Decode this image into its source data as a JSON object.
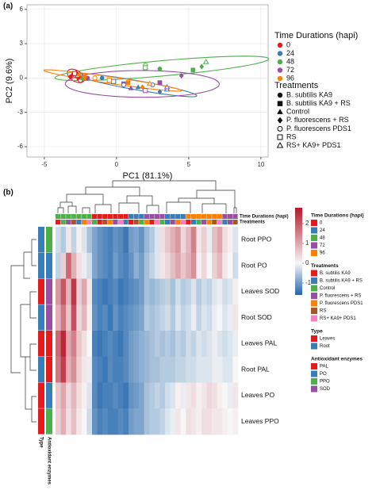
{
  "chart_data": [
    {
      "type": "scatter",
      "panel": "(a)",
      "xlabel": "PC1 (81.1%)",
      "ylabel": "PC2 (9.6%)",
      "xlim": [
        -6.2,
        10.5
      ],
      "ylim": [
        -6.9,
        6.4
      ],
      "xticks": [
        -5,
        0,
        5,
        10
      ],
      "yticks": [
        -6,
        -3,
        0,
        3,
        6
      ],
      "grid": true,
      "legend_title": "Time Durations (hapi)",
      "series": [
        {
          "name": "0",
          "color": "#e41a1c",
          "x": [
            -3.0,
            -2.6,
            -2.8,
            -3.2,
            -2.5,
            -2.9,
            -2.7
          ],
          "values": [
            0.3,
            0.0,
            0.5,
            0.1,
            -0.2,
            0.4,
            0.2
          ]
        },
        {
          "name": "24",
          "color": "#377eb8",
          "x": [
            -1.0,
            0.5,
            1.5,
            3.0,
            2.5,
            -0.2,
            3.5
          ],
          "values": [
            0.0,
            -0.5,
            -0.8,
            -1.2,
            -0.6,
            -0.3,
            -1.0
          ]
        },
        {
          "name": "48",
          "color": "#4daf4a",
          "x": [
            3.0,
            5.3,
            -2.4,
            5.9,
            2.0,
            2.0,
            6.2
          ],
          "values": [
            0.8,
            0.7,
            0.0,
            1.0,
            1.1,
            0.9,
            1.4
          ]
        },
        {
          "name": "72",
          "color": "#984ea3",
          "x": [
            -2.0,
            3.0,
            1.0,
            4.5,
            0.5,
            2.0,
            3.5
          ],
          "values": [
            0.0,
            -0.4,
            -0.9,
            0.2,
            -0.6,
            -1.1,
            -0.8
          ]
        },
        {
          "name": "96",
          "color": "#ff7f00",
          "x": [
            -2.2,
            0.8,
            -2.6,
            1.8,
            -1.5,
            -0.5,
            2.3
          ],
          "values": [
            0.1,
            -0.4,
            0.3,
            -0.8,
            0.0,
            -0.2,
            -0.5
          ]
        }
      ],
      "treatments": {
        "title": "Treatments",
        "names": [
          "B. subtilis KA9",
          "B. subtilis KA9 + RS",
          "Control",
          "P. fluorescens + RS",
          "P. fluorescens PDS1",
          "RS",
          "RS+ KA9+ PDS1"
        ],
        "markers": [
          "circle",
          "square",
          "triangle",
          "diamond",
          "circle-open",
          "square-open",
          "triangle-open"
        ]
      }
    },
    {
      "type": "heatmap",
      "panel": "(b)",
      "rows": [
        "Root PPO",
        "Root PO",
        "Leaves SOD",
        "Root SOD",
        "Leaves PAL",
        "Root PAL",
        "Leaves PO",
        "Leaves PPO"
      ],
      "matrix": [
        [
          -0.3,
          -0.5,
          0.2,
          -0.4,
          0.1,
          -0.2,
          -0.6,
          -0.9,
          -1.1,
          -1.2,
          -1.3,
          -1.1,
          -1.2,
          -1.4,
          -1.0,
          -0.9,
          -1.1,
          -0.7,
          -0.5,
          -0.2,
          0.3,
          0.6,
          0.9,
          1.2,
          0.4,
          0.8,
          1.5,
          0.2,
          0.5,
          -0.1,
          0.7,
          1.0,
          0.3,
          0.1,
          -0.2
        ],
        [
          -0.4,
          0.5,
          1.8,
          0.9,
          0.3,
          -0.1,
          -0.3,
          -0.9,
          -1.1,
          -1.2,
          -1.3,
          -1.0,
          -1.2,
          -1.3,
          -1.1,
          -0.8,
          -1.0,
          -0.6,
          -0.4,
          -0.2,
          0.2,
          0.4,
          0.7,
          1.0,
          0.6,
          0.9,
          1.3,
          0.1,
          0.4,
          0.0,
          0.5,
          0.8,
          0.2,
          0.0,
          -0.3
        ],
        [
          1.2,
          2.0,
          0.8,
          2.4,
          0.5,
          1.0,
          0.2,
          -1.2,
          -1.3,
          -1.4,
          -1.3,
          -1.2,
          -1.4,
          -1.3,
          -1.2,
          -1.1,
          -1.0,
          -0.6,
          -0.7,
          -0.6,
          -0.5,
          -0.4,
          -0.6,
          -0.3,
          -0.5,
          -0.4,
          -0.2,
          -0.5,
          -0.3,
          -0.4,
          -0.2,
          -0.1,
          -0.3,
          -0.2,
          0.1
        ],
        [
          0.9,
          1.6,
          0.6,
          2.1,
          0.4,
          0.8,
          0.1,
          -1.1,
          -1.3,
          -1.2,
          -1.4,
          -1.1,
          -1.3,
          -1.2,
          -1.1,
          -1.0,
          -0.9,
          -0.5,
          -0.6,
          -0.5,
          -0.4,
          -0.3,
          -0.5,
          -0.2,
          -0.4,
          -0.3,
          -0.1,
          -0.4,
          -0.2,
          -0.3,
          -0.1,
          0.0,
          -0.2,
          -0.1,
          0.2
        ],
        [
          1.8,
          2.6,
          1.0,
          1.5,
          0.6,
          0.3,
          0.0,
          -1.3,
          -1.4,
          -1.3,
          -1.2,
          -1.3,
          -1.4,
          -1.2,
          -1.0,
          -0.9,
          -0.8,
          -0.7,
          -0.6,
          -0.5,
          -0.6,
          -0.5,
          -0.6,
          -0.4,
          -0.5,
          -0.3,
          -0.4,
          -0.2,
          -0.3,
          -0.2,
          -0.1,
          -0.2,
          -0.3,
          -0.2,
          -0.1
        ],
        [
          1.6,
          2.3,
          0.9,
          1.3,
          0.5,
          0.2,
          -0.1,
          -1.2,
          -1.3,
          -1.4,
          -1.2,
          -1.3,
          -1.3,
          -1.2,
          -1.0,
          -0.9,
          -0.8,
          -0.7,
          -0.6,
          -0.6,
          -0.5,
          -0.5,
          -0.5,
          -0.4,
          -0.4,
          -0.3,
          -0.3,
          -0.2,
          -0.2,
          -0.2,
          -0.1,
          -0.1,
          -0.2,
          -0.2,
          0.0
        ],
        [
          0.6,
          1.0,
          0.4,
          0.8,
          0.3,
          0.1,
          -0.2,
          -1.2,
          -1.4,
          -1.3,
          -1.3,
          -1.2,
          -1.3,
          -1.4,
          -1.1,
          -1.0,
          -0.9,
          -0.6,
          -0.5,
          -0.4,
          -0.5,
          -0.3,
          -0.2,
          0.1,
          -0.1,
          0.2,
          0.3,
          0.1,
          0.2,
          0.4,
          0.3,
          0.1,
          0.0,
          -0.1,
          0.2
        ],
        [
          0.5,
          0.9,
          0.3,
          0.7,
          0.2,
          0.0,
          -0.3,
          -1.1,
          -1.3,
          -1.2,
          -1.3,
          -1.3,
          -1.2,
          -1.3,
          -1.0,
          -0.9,
          -0.9,
          -0.6,
          -0.5,
          -0.5,
          -0.4,
          -0.2,
          -0.1,
          0.2,
          0.0,
          0.3,
          0.2,
          0.1,
          0.3,
          0.3,
          0.2,
          0.2,
          0.1,
          0.0,
          0.1
        ]
      ],
      "col_time": [
        "48",
        "48",
        "48",
        "48",
        "48",
        "48",
        "48",
        "0",
        "0",
        "0",
        "0",
        "0",
        "0",
        "0",
        "24",
        "24",
        "24",
        "72",
        "72",
        "72",
        "72",
        "24",
        "24",
        "24",
        "24",
        "96",
        "96",
        "96",
        "96",
        "96",
        "96",
        "96",
        "72",
        "72",
        "72"
      ],
      "col_treatment": [
        "B. subtilis KA9",
        "Control",
        "P. fluorescens + RS",
        "RS",
        "B. subtilis KA9 + RS",
        "P. fluorescens PDS1",
        "RS+ KA9+ PDS1",
        "Control",
        "B. subtilis KA9",
        "RS",
        "P. fluorescens PDS1",
        "P. fluorescens + RS",
        "RS+ KA9+ PDS1",
        "B. subtilis KA9 + RS",
        "B. subtilis KA9",
        "RS",
        "Control",
        "P. fluorescens PDS1",
        "B. subtilis KA9",
        "RS+ KA9+ PDS1",
        "Control",
        "B. subtilis KA9 + RS",
        "P. fluorescens + RS",
        "P. fluorescens PDS1",
        "RS+ KA9+ PDS1",
        "B. subtilis KA9",
        "B. subtilis KA9 + RS",
        "Control",
        "P. fluorescens + RS",
        "P. fluorescens PDS1",
        "RS",
        "RS+ KA9+ PDS1",
        "B. subtilis KA9 + RS",
        "P. fluorescens + RS",
        "RS"
      ],
      "row_type": [
        "Root",
        "Root",
        "Leaves",
        "Root",
        "Leaves",
        "Root",
        "Leaves",
        "Leaves"
      ],
      "row_enzyme": [
        "PPO",
        "PO",
        "SOD",
        "SOD",
        "PAL",
        "PAL",
        "PO",
        "PPO"
      ],
      "col_annotation_labels": [
        "Time Durations (hapi)",
        "Treatments"
      ],
      "row_annotation_labels": [
        "Type",
        "Antioxidant enzymes"
      ],
      "colorbar": {
        "lim": [
          -1.6,
          2.8
        ],
        "ticks": [
          2,
          1,
          0,
          -1
        ],
        "low": "#2166ac",
        "mid": "#f7f7f7",
        "high": "#b2182b"
      },
      "legends": [
        {
          "title": "Time Durations (hapi)",
          "names": [
            "0",
            "24",
            "48",
            "72",
            "96"
          ],
          "colors": [
            "#e41a1c",
            "#377eb8",
            "#4daf4a",
            "#984ea3",
            "#ff7f00"
          ]
        },
        {
          "title": "Treatments",
          "names": [
            "B. subtilis KA9",
            "B. subtilis KA9 + RS",
            "Control",
            "P. fluorescens + RS",
            "P. fluorescens PDS1",
            "RS",
            "RS+ KA9+ PDS1"
          ],
          "colors": [
            "#e41a1c",
            "#377eb8",
            "#4daf4a",
            "#984ea3",
            "#ff7f00",
            "#a65628",
            "#f781bf"
          ]
        },
        {
          "title": "Type",
          "names": [
            "Leaves",
            "Root"
          ],
          "colors": [
            "#e41a1c",
            "#377eb8"
          ]
        },
        {
          "title": "Antioxidant enzymes",
          "names": [
            "PAL",
            "PO",
            "PPO",
            "SOD"
          ],
          "colors": [
            "#e41a1c",
            "#377eb8",
            "#4daf4a",
            "#984ea3"
          ]
        }
      ]
    }
  ]
}
